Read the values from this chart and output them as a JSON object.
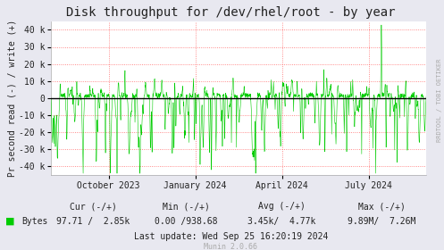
{
  "title": "Disk throughput for /dev/rhel/root - by year",
  "ylabel": "Pr second read (-) / write (+)",
  "right_label": "RRDTOOL / TOBI OETIKER",
  "bg_color": "#e8e8f0",
  "plot_bg_color": "#ffffff",
  "grid_color": "#ff4444",
  "line_color": "#00cc00",
  "zero_line_color": "#000000",
  "ylim": [
    -45000,
    45000
  ],
  "yticks": [
    -40000,
    -30000,
    -20000,
    -10000,
    0,
    10000,
    20000,
    30000,
    40000
  ],
  "ytick_labels": [
    "-40 k",
    "-30 k",
    "-20 k",
    "-10 k",
    "0",
    "10 k",
    "20 k",
    "30 k",
    "40 k"
  ],
  "xtick_labels": [
    "October 2023",
    "January 2024",
    "April 2024",
    "July 2024"
  ],
  "xtick_pos": [
    0.1538,
    0.3846,
    0.6154,
    0.8462
  ],
  "legend_label": "Bytes",
  "legend_color": "#00cc00",
  "stats_row1": "    Cur (-/+)          Min (-/+)        Avg (-/+)        Max (-/+)",
  "stats_row2": "97.71 /  2.85k     0.00 /938.68    3.45k/  4.77k    9.89M/  7.26M",
  "bytes_label": "Bytes",
  "last_update": "Last update: Wed Sep 25 16:20:19 2024",
  "munin_version": "Munin 2.0.66",
  "title_fontsize": 10,
  "axis_label_fontsize": 7,
  "tick_fontsize": 7,
  "footer_fontsize": 7,
  "munin_fontsize": 6
}
